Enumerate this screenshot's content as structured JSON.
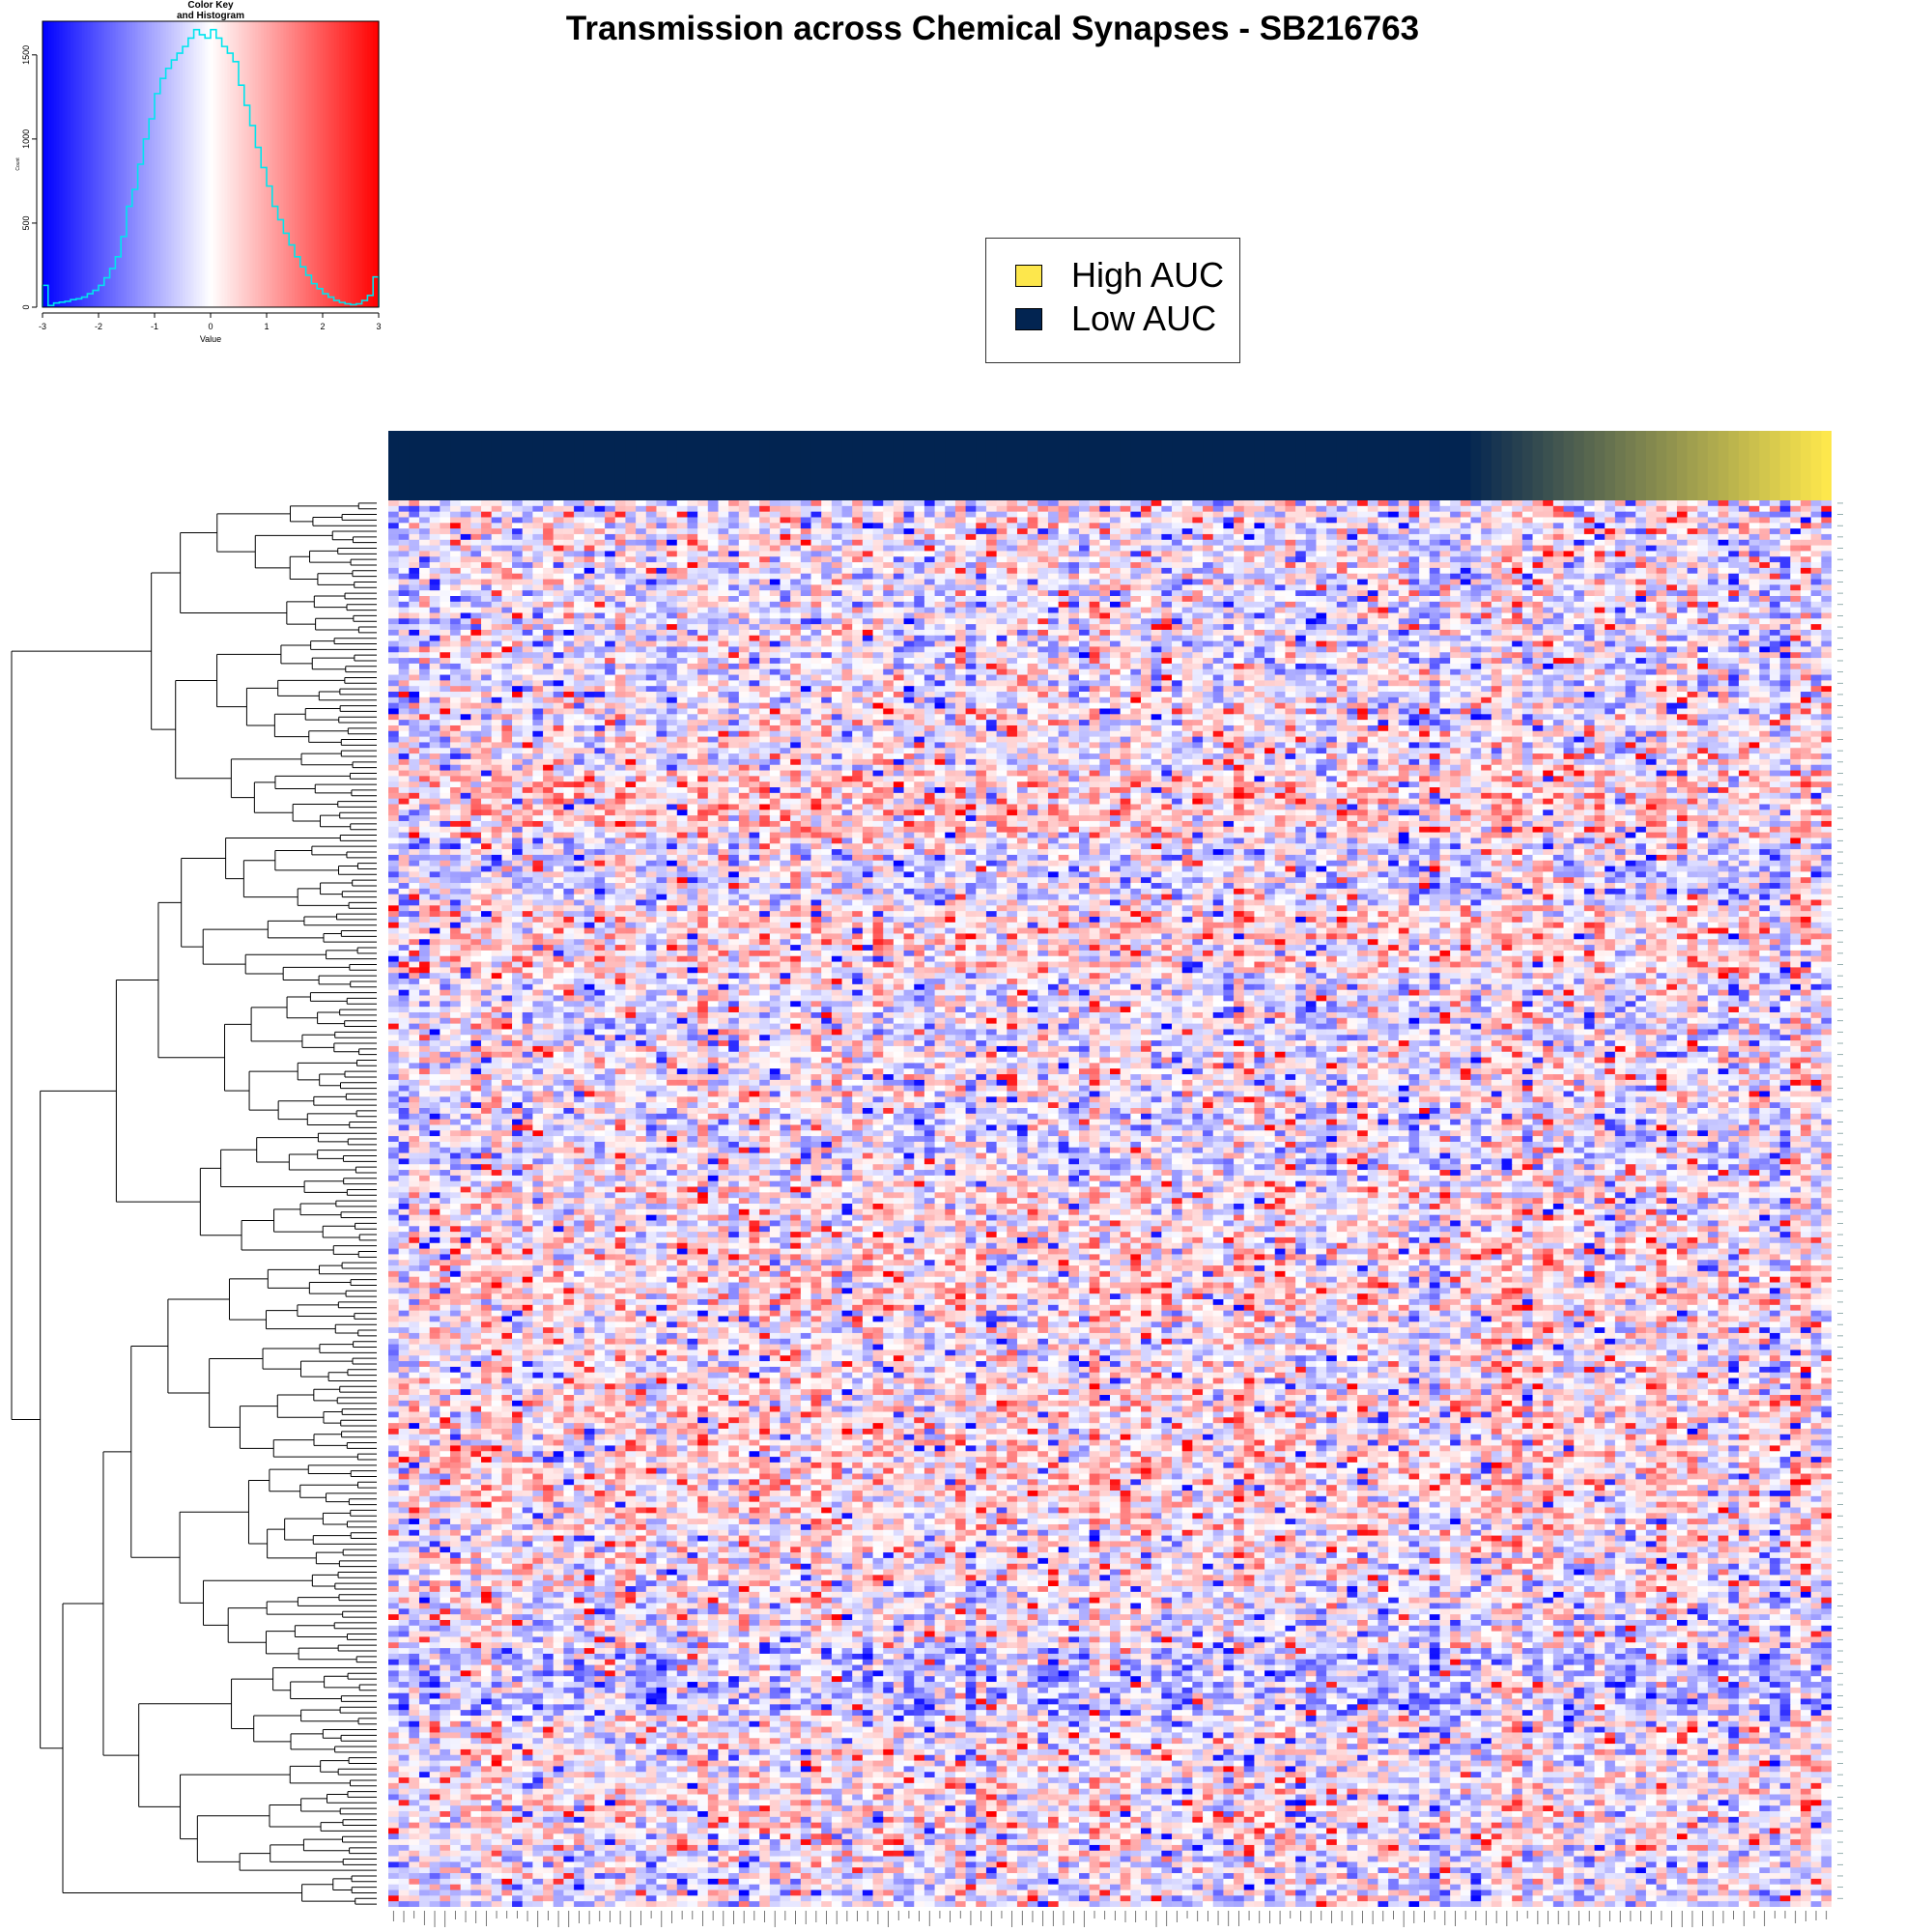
{
  "title": "Transmission across Chemical Synapses - SB216763",
  "legend": {
    "items": [
      {
        "label": "High AUC",
        "color": "#fde74c"
      },
      {
        "label": "Low AUC",
        "color": "#022451"
      }
    ]
  },
  "colors": {
    "low": "#0000ff",
    "mid": "#ffffff",
    "high": "#ff0000",
    "histogram_line": "#00e5ee",
    "auc_low": "#022451",
    "auc_high": "#fde74c"
  },
  "chart_data": [
    {
      "type": "bar",
      "name": "color-key-histogram",
      "title": "Color Key\nand Histogram",
      "xlabel": "Value",
      "ylabel": "Count",
      "xlim": [
        -3,
        3
      ],
      "ylim": [
        0,
        1700
      ],
      "xticks": [
        -3,
        -2,
        -1,
        0,
        1,
        2,
        3
      ],
      "yticks": [
        0,
        500,
        1000,
        1500
      ],
      "bin_width": 0.1,
      "x": [
        -2.95,
        -2.85,
        -2.75,
        -2.65,
        -2.55,
        -2.45,
        -2.35,
        -2.25,
        -2.15,
        -2.05,
        -1.95,
        -1.85,
        -1.75,
        -1.65,
        -1.55,
        -1.45,
        -1.35,
        -1.25,
        -1.15,
        -1.05,
        -0.95,
        -0.85,
        -0.75,
        -0.65,
        -0.55,
        -0.45,
        -0.35,
        -0.25,
        -0.15,
        -0.05,
        0.05,
        0.15,
        0.25,
        0.35,
        0.45,
        0.55,
        0.65,
        0.75,
        0.85,
        0.95,
        1.05,
        1.15,
        1.25,
        1.35,
        1.45,
        1.55,
        1.65,
        1.75,
        1.85,
        1.95,
        2.05,
        2.15,
        2.25,
        2.35,
        2.45,
        2.55,
        2.65,
        2.75,
        2.85,
        2.95
      ],
      "values": [
        130,
        10,
        25,
        30,
        35,
        45,
        50,
        60,
        80,
        100,
        130,
        175,
        230,
        300,
        420,
        600,
        700,
        850,
        1000,
        1120,
        1270,
        1360,
        1420,
        1470,
        1510,
        1550,
        1600,
        1650,
        1620,
        1600,
        1650,
        1600,
        1550,
        1510,
        1460,
        1320,
        1200,
        1080,
        950,
        830,
        720,
        600,
        520,
        440,
        370,
        300,
        240,
        190,
        140,
        110,
        80,
        60,
        40,
        28,
        20,
        15,
        20,
        40,
        70,
        180
      ]
    },
    {
      "type": "heatmap",
      "name": "pathway-gene-heatmap",
      "color_range": [
        -3,
        3
      ],
      "colorscale": [
        "#0000ff",
        "#ffffff",
        "#ff0000"
      ],
      "n_rows": 250,
      "n_columns": 140,
      "column_annotation": "AUC (Low → High)",
      "row_dendrogram": true
    }
  ]
}
